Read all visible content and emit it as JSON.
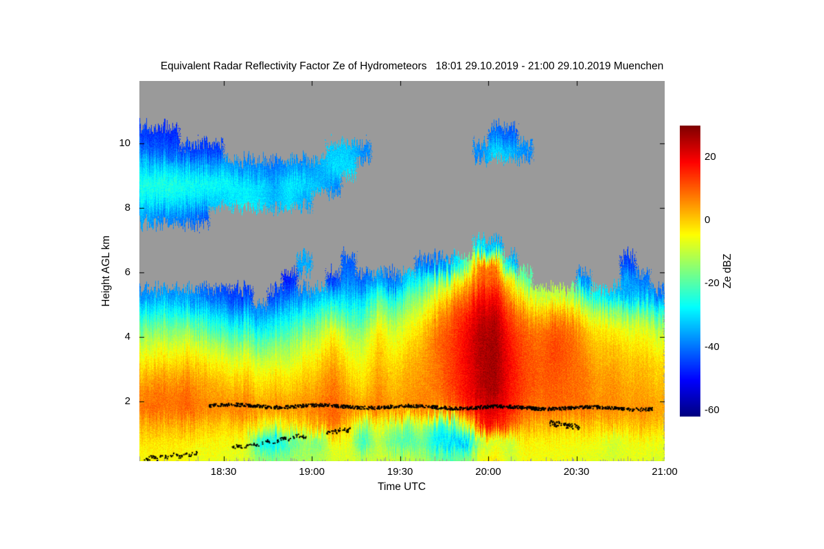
{
  "chart": {
    "title": "Equivalent Radar Reflectivity Factor Ze of Hydrometeors   18:01 29.10.2019 - 21:00 29.10.2019 Muenchen",
    "xlabel": "Time UTC",
    "ylabel": "Height AGL km",
    "colorbar": {
      "label": "Ze dBZ",
      "vmin": -62,
      "vmax": 30,
      "ticks": [
        {
          "v": 20,
          "label": "20"
        },
        {
          "v": 0,
          "label": "0"
        },
        {
          "v": -20,
          "label": "-20"
        },
        {
          "v": -40,
          "label": "-40"
        },
        {
          "v": -60,
          "label": "-60"
        }
      ]
    },
    "x_ticks": [
      {
        "v": 18.5,
        "label": "18:30"
      },
      {
        "v": 19.0,
        "label": "19:00"
      },
      {
        "v": 19.5,
        "label": "19:30"
      },
      {
        "v": 20.0,
        "label": "20:00"
      },
      {
        "v": 20.5,
        "label": "20:30"
      },
      {
        "v": 21.0,
        "label": "21:00"
      }
    ],
    "y_ticks": [
      {
        "v": 2,
        "label": "2"
      },
      {
        "v": 4,
        "label": "4"
      },
      {
        "v": 6,
        "label": "6"
      },
      {
        "v": 8,
        "label": "8"
      },
      {
        "v": 10,
        "label": "10"
      }
    ],
    "colors": {
      "no_signal_gray": "#9a9a9a",
      "background": "#ffffff",
      "dots": "#000000"
    }
  },
  "chart_data": {
    "type": "heatmap",
    "units": "dBZ",
    "t_start_hours": 18.023,
    "t_end_hours": 21.0,
    "h_bottom_km": 0.15,
    "h_top_km": 11.94,
    "grid_t_min": 18.0,
    "grid_t_max": 21.0,
    "grid_h_min": 0.0,
    "grid_h_max": 12.0,
    "grid_cols": 36,
    "grid_rows": 24,
    "rows_order": "bottom_to_top",
    "grid": [
      [
        -5,
        -4,
        -5,
        -5,
        -6,
        -6,
        -7,
        -8,
        -14,
        -16,
        -14,
        -12,
        -12,
        -8,
        -8,
        -10,
        -9,
        -9,
        -10,
        -12,
        -16,
        -18,
        -16,
        -6,
        -3,
        -10,
        -5,
        -6,
        -6,
        -6,
        -7,
        -7,
        -8,
        -7,
        -7,
        -8
      ],
      [
        -2,
        -2,
        -2,
        -3,
        -4,
        -4,
        -5,
        -6,
        -28,
        -30,
        -22,
        -15,
        -18,
        -6,
        -6,
        -25,
        -10,
        -20,
        -22,
        -18,
        -30,
        -32,
        -35,
        -12,
        -8,
        -10,
        -3,
        -4,
        -4,
        -5,
        -5,
        -6,
        -10,
        -6,
        -5,
        -6
      ],
      [
        2,
        3,
        2,
        3,
        1,
        0,
        0,
        2,
        -5,
        -8,
        -3,
        0,
        3,
        8,
        0,
        -15,
        -5,
        -12,
        -15,
        -10,
        -25,
        -20,
        -10,
        15,
        18,
        10,
        4,
        2,
        3,
        0,
        1,
        0,
        2,
        0,
        2,
        0
      ],
      [
        8,
        9,
        8,
        10,
        7,
        6,
        7,
        8,
        5,
        6,
        5,
        6,
        8,
        10,
        7,
        5,
        8,
        5,
        6,
        7,
        5,
        8,
        14,
        20,
        22,
        16,
        10,
        8,
        9,
        8,
        8,
        6,
        6,
        5,
        6,
        4
      ],
      [
        6,
        8,
        7,
        9,
        5,
        4,
        2,
        4,
        0,
        2,
        1,
        3,
        5,
        9,
        3,
        0,
        6,
        2,
        4,
        6,
        7,
        12,
        18,
        24,
        26,
        17,
        12,
        9,
        10,
        9,
        8,
        4,
        6,
        3,
        4,
        2
      ],
      [
        2,
        4,
        3,
        6,
        2,
        1,
        -2,
        0,
        -4,
        -2,
        -3,
        0,
        2,
        7,
        0,
        -3,
        4,
        0,
        3,
        5,
        8,
        13,
        18,
        25,
        27,
        18,
        12,
        10,
        11,
        9,
        8,
        4,
        5,
        2,
        3,
        0
      ],
      [
        -4,
        -2,
        -3,
        0,
        -3,
        -5,
        -8,
        -6,
        -10,
        -8,
        -9,
        -5,
        -2,
        4,
        -4,
        -6,
        2,
        -3,
        1,
        4,
        8,
        13,
        19,
        25,
        27,
        18,
        12,
        10,
        12,
        10,
        7,
        2,
        3,
        0,
        1,
        -2
      ],
      [
        -10,
        -8,
        -9,
        -6,
        -10,
        -12,
        -16,
        -14,
        -18,
        -15,
        -14,
        -10,
        -8,
        0,
        -9,
        -10,
        0,
        -6,
        -2,
        2,
        9,
        13,
        19,
        26,
        27,
        17,
        11,
        9,
        12,
        10,
        5,
        0,
        0,
        -3,
        -2,
        -6
      ],
      [
        -18,
        -16,
        -17,
        -14,
        -20,
        -22,
        -26,
        -24,
        -28,
        -25,
        -22,
        -18,
        -14,
        -6,
        -15,
        -16,
        -4,
        -10,
        -6,
        -1,
        7,
        12,
        18,
        25,
        26,
        15,
        9,
        7,
        10,
        8,
        2,
        -3,
        -4,
        -8,
        -6,
        -12
      ],
      [
        -28,
        -26,
        -27,
        -25,
        -30,
        -32,
        -36,
        -34,
        -38,
        -34,
        -30,
        -28,
        -24,
        -18,
        -24,
        -24,
        -12,
        -18,
        -12,
        -6,
        2,
        9,
        15,
        22,
        23,
        11,
        3,
        0,
        3,
        1,
        -6,
        -12,
        -14,
        -20,
        -16,
        -24
      ],
      [
        -38,
        -36,
        -37,
        -36,
        -40,
        -42,
        -45,
        -45,
        null,
        -45,
        -38,
        -38,
        -34,
        -30,
        -32,
        -32,
        -22,
        -28,
        -20,
        -14,
        -6,
        2,
        9,
        17,
        18,
        4,
        -6,
        -12,
        -10,
        -12,
        -20,
        -28,
        -32,
        -36,
        -32,
        -40
      ],
      [
        null,
        null,
        null,
        null,
        null,
        null,
        null,
        null,
        null,
        null,
        -48,
        null,
        null,
        -45,
        -38,
        -42,
        -35,
        -42,
        -32,
        -25,
        -18,
        -10,
        0,
        10,
        11,
        -5,
        -20,
        null,
        null,
        null,
        -38,
        null,
        null,
        -35,
        -40,
        null
      ],
      [
        null,
        null,
        null,
        null,
        null,
        null,
        null,
        null,
        null,
        null,
        null,
        -35,
        null,
        null,
        -42,
        null,
        null,
        null,
        null,
        -40,
        -40,
        -35,
        -20,
        8,
        6,
        -35,
        null,
        null,
        null,
        null,
        null,
        null,
        null,
        -45,
        null,
        null
      ],
      [
        null,
        null,
        null,
        null,
        null,
        null,
        null,
        null,
        null,
        null,
        null,
        null,
        null,
        null,
        null,
        null,
        null,
        null,
        null,
        null,
        null,
        null,
        null,
        -30,
        -35,
        null,
        null,
        null,
        null,
        null,
        null,
        null,
        null,
        null,
        null,
        null
      ],
      [
        null,
        null,
        null,
        null,
        null,
        null,
        null,
        null,
        null,
        null,
        null,
        null,
        null,
        null,
        null,
        null,
        null,
        null,
        null,
        null,
        null,
        null,
        null,
        null,
        null,
        null,
        null,
        null,
        null,
        null,
        null,
        null,
        null,
        null,
        null,
        null
      ],
      [
        -35,
        -38,
        -38,
        -40,
        -42,
        null,
        null,
        null,
        null,
        null,
        null,
        null,
        null,
        null,
        null,
        null,
        null,
        null,
        null,
        null,
        null,
        null,
        null,
        null,
        null,
        null,
        null,
        null,
        null,
        null,
        null,
        null,
        null,
        null,
        null,
        null
      ],
      [
        -28,
        -28,
        -28,
        -30,
        -30,
        -32,
        -30,
        -28,
        -30,
        -34,
        -30,
        -35,
        null,
        null,
        null,
        null,
        null,
        null,
        null,
        null,
        null,
        null,
        null,
        null,
        null,
        null,
        null,
        null,
        null,
        null,
        null,
        null,
        null,
        null,
        null,
        null
      ],
      [
        -25,
        -24,
        -24,
        -25,
        -26,
        -26,
        -27,
        -30,
        -30,
        -35,
        -28,
        -30,
        -33,
        -38,
        null,
        null,
        null,
        null,
        null,
        null,
        null,
        null,
        null,
        null,
        null,
        null,
        null,
        null,
        null,
        null,
        null,
        null,
        null,
        null,
        null,
        null
      ],
      [
        -30,
        -32,
        -32,
        -32,
        -34,
        -35,
        -36,
        -38,
        -38,
        -40,
        -36,
        -38,
        -35,
        -30,
        -30,
        null,
        null,
        null,
        null,
        null,
        null,
        null,
        null,
        null,
        null,
        null,
        null,
        null,
        null,
        null,
        null,
        null,
        null,
        null,
        null,
        null
      ],
      [
        -40,
        -42,
        -42,
        -44,
        -45,
        -45,
        null,
        null,
        null,
        null,
        null,
        null,
        null,
        -32,
        -32,
        -38,
        null,
        null,
        null,
        null,
        null,
        null,
        null,
        -38,
        -30,
        -33,
        -38,
        null,
        null,
        null,
        null,
        null,
        null,
        null,
        null,
        null
      ],
      [
        -45,
        -46,
        -47,
        null,
        null,
        null,
        null,
        null,
        null,
        null,
        null,
        null,
        null,
        null,
        null,
        null,
        null,
        null,
        null,
        null,
        null,
        null,
        null,
        null,
        -40,
        -42,
        null,
        null,
        null,
        null,
        null,
        null,
        null,
        null,
        null,
        null
      ],
      [
        null,
        null,
        null,
        null,
        null,
        null,
        null,
        null,
        null,
        null,
        null,
        null,
        null,
        null,
        null,
        null,
        null,
        null,
        null,
        null,
        null,
        null,
        null,
        null,
        null,
        null,
        null,
        null,
        null,
        null,
        null,
        null,
        null,
        null,
        null,
        null
      ],
      [
        null,
        null,
        null,
        null,
        null,
        null,
        null,
        null,
        null,
        null,
        null,
        null,
        null,
        null,
        null,
        null,
        null,
        null,
        null,
        null,
        null,
        null,
        null,
        null,
        null,
        null,
        null,
        null,
        null,
        null,
        null,
        null,
        null,
        null,
        null,
        null
      ],
      [
        null,
        null,
        null,
        null,
        null,
        null,
        null,
        null,
        null,
        null,
        null,
        null,
        null,
        null,
        null,
        null,
        null,
        null,
        null,
        null,
        null,
        null,
        null,
        null,
        null,
        null,
        null,
        null,
        null,
        null,
        null,
        null,
        null,
        null,
        null,
        null
      ]
    ],
    "bright_band_segments": [
      {
        "t0": 18.42,
        "t1": 20.93,
        "h0": 1.87,
        "h1": 1.78,
        "spread": 0.05,
        "n": 1100
      },
      {
        "t0": 18.05,
        "t1": 18.35,
        "h0": 0.22,
        "h1": 0.38,
        "spread": 0.06,
        "n": 70
      },
      {
        "t0": 18.55,
        "t1": 18.97,
        "h0": 0.55,
        "h1": 0.95,
        "spread": 0.05,
        "n": 90
      },
      {
        "t0": 19.08,
        "t1": 19.22,
        "h0": 1.05,
        "h1": 1.12,
        "spread": 0.05,
        "n": 40
      },
      {
        "t0": 20.35,
        "t1": 20.52,
        "h0": 1.32,
        "h1": 1.22,
        "spread": 0.08,
        "n": 70
      }
    ]
  }
}
